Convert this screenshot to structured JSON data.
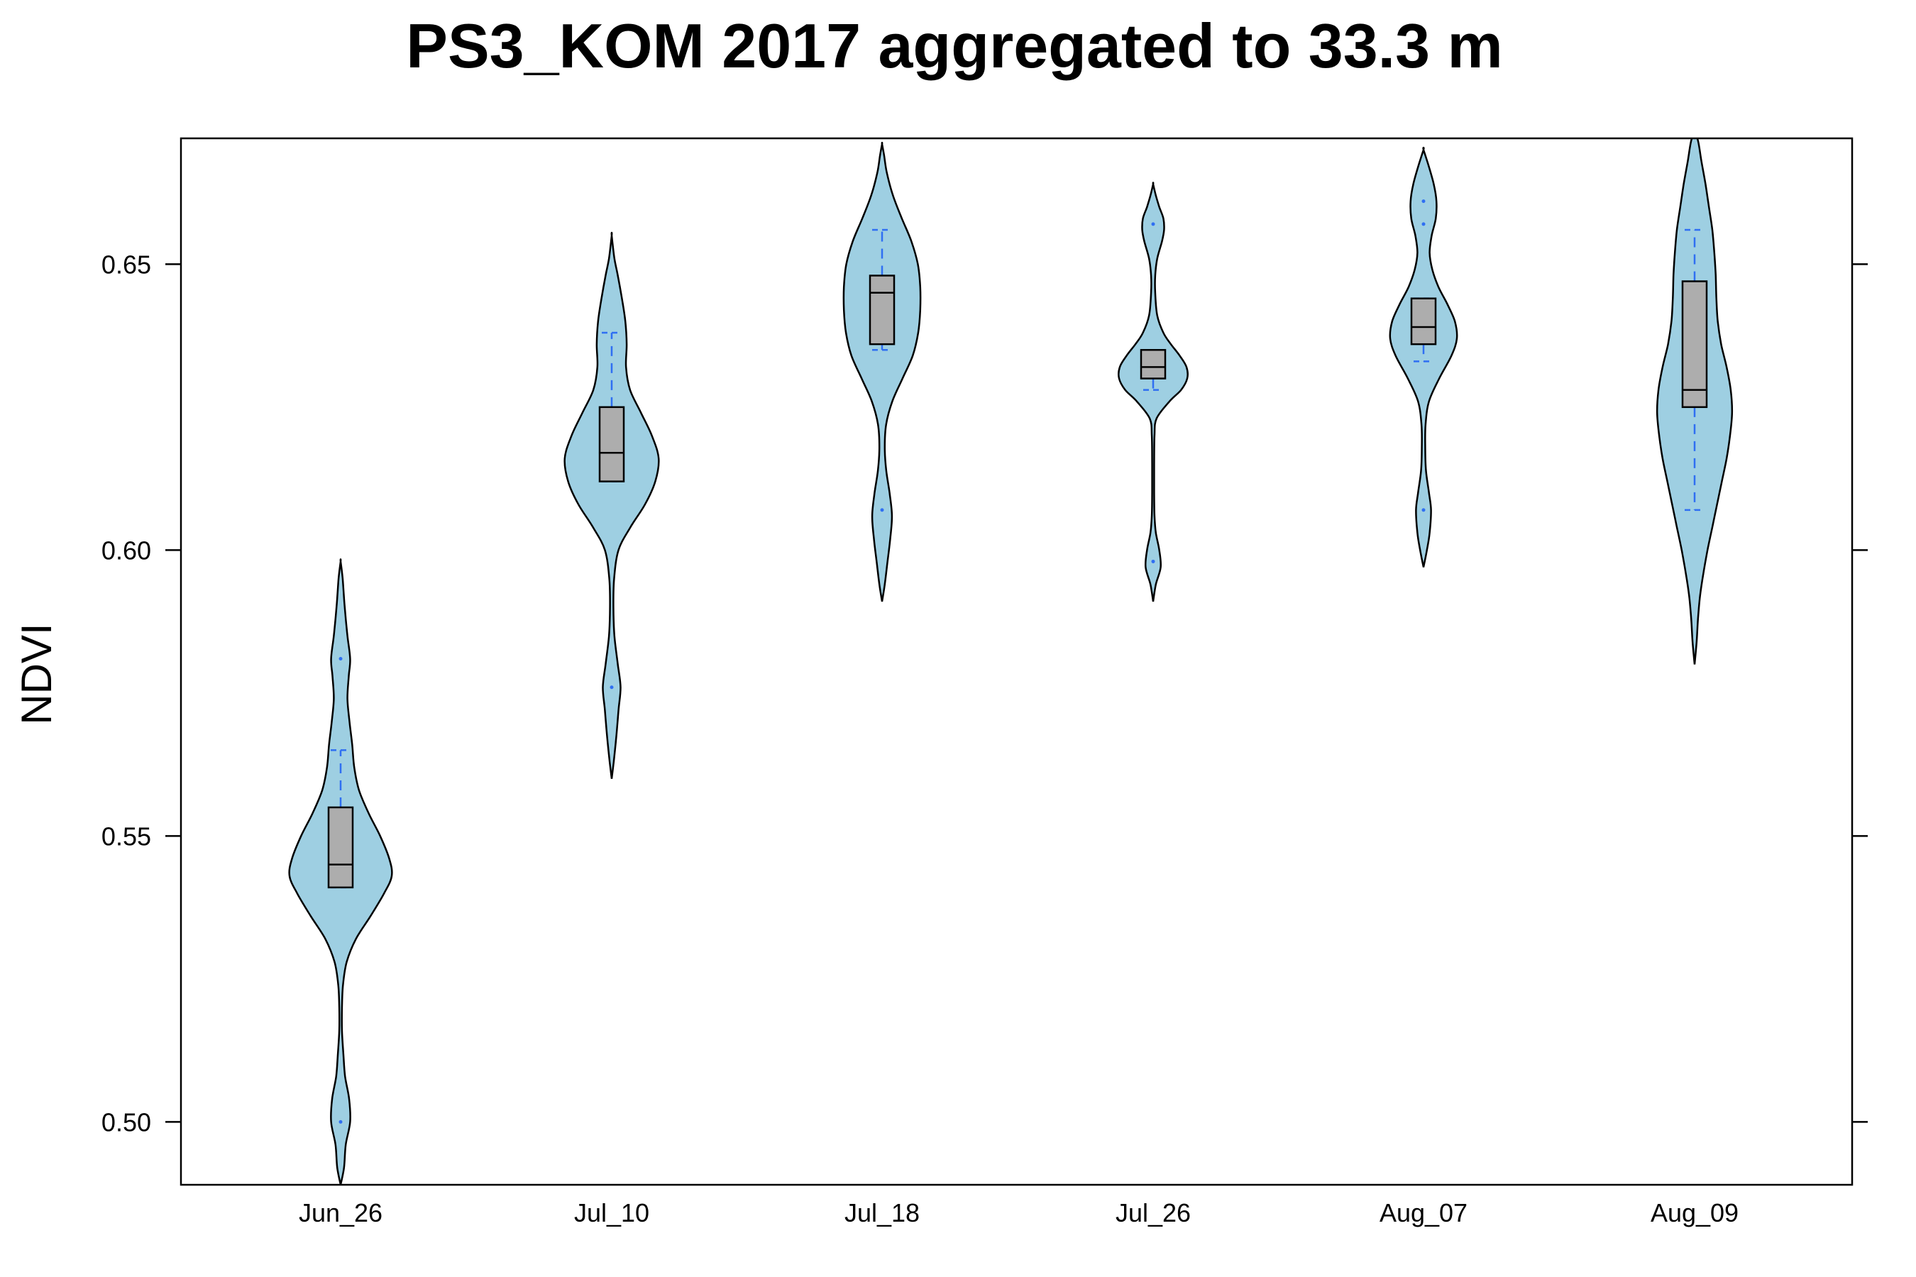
{
  "chart_data": {
    "type": "violin",
    "title": "PS3_KOM 2017 aggregated to 33.3 m",
    "xlabel": "",
    "ylabel": "NDVI",
    "ylim": [
      0.489,
      0.672
    ],
    "yticks": [
      0.5,
      0.55,
      0.6,
      0.65
    ],
    "ytick_labels": [
      "0.50",
      "0.55",
      "0.60",
      "0.65"
    ],
    "categories": [
      "Jun_26",
      "Jul_10",
      "Jul_18",
      "Jul_26",
      "Aug_07",
      "Aug_09"
    ],
    "grid": false,
    "colors": {
      "violin_fill": "#9ecfe2",
      "violin_stroke": "#000000",
      "box_fill": "#adadad",
      "whisker": "#2f6ff2"
    },
    "boxes": [
      {
        "category": "Jun_26",
        "q1": 0.541,
        "median": 0.545,
        "q3": 0.555,
        "whisker_low": 0.541,
        "whisker_high": 0.565
      },
      {
        "category": "Jul_10",
        "q1": 0.612,
        "median": 0.617,
        "q3": 0.625,
        "whisker_low": 0.612,
        "whisker_high": 0.638
      },
      {
        "category": "Jul_18",
        "q1": 0.636,
        "median": 0.645,
        "q3": 0.648,
        "whisker_low": 0.635,
        "whisker_high": 0.656
      },
      {
        "category": "Jul_26",
        "q1": 0.63,
        "median": 0.632,
        "q3": 0.635,
        "whisker_low": 0.628,
        "whisker_high": 0.635
      },
      {
        "category": "Aug_07",
        "q1": 0.636,
        "median": 0.639,
        "q3": 0.644,
        "whisker_low": 0.633,
        "whisker_high": 0.644
      },
      {
        "category": "Aug_09",
        "q1": 0.625,
        "median": 0.628,
        "q3": 0.647,
        "whisker_low": 0.607,
        "whisker_high": 0.656
      }
    ],
    "outliers": [
      {
        "category": "Jun_26",
        "values": [
          0.581,
          0.5
        ]
      },
      {
        "category": "Jul_10",
        "values": [
          0.576
        ]
      },
      {
        "category": "Jul_18",
        "values": [
          0.607
        ]
      },
      {
        "category": "Jul_26",
        "values": [
          0.657,
          0.598
        ]
      },
      {
        "category": "Aug_07",
        "values": [
          0.661,
          0.657,
          0.607
        ]
      },
      {
        "category": "Aug_09",
        "values": []
      }
    ],
    "violins": [
      {
        "category": "Jun_26",
        "profile": [
          [
            0.489,
            0.0
          ],
          [
            0.492,
            0.01
          ],
          [
            0.496,
            0.015
          ],
          [
            0.5,
            0.028
          ],
          [
            0.504,
            0.025
          ],
          [
            0.508,
            0.013
          ],
          [
            0.512,
            0.008
          ],
          [
            0.516,
            0.004
          ],
          [
            0.52,
            0.004
          ],
          [
            0.524,
            0.007
          ],
          [
            0.528,
            0.018
          ],
          [
            0.532,
            0.045
          ],
          [
            0.536,
            0.088
          ],
          [
            0.54,
            0.128
          ],
          [
            0.543,
            0.15
          ],
          [
            0.546,
            0.143
          ],
          [
            0.55,
            0.116
          ],
          [
            0.554,
            0.082
          ],
          [
            0.558,
            0.054
          ],
          [
            0.562,
            0.04
          ],
          [
            0.566,
            0.034
          ],
          [
            0.57,
            0.026
          ],
          [
            0.574,
            0.02
          ],
          [
            0.578,
            0.024
          ],
          [
            0.581,
            0.028
          ],
          [
            0.585,
            0.02
          ],
          [
            0.59,
            0.012
          ],
          [
            0.595,
            0.006
          ],
          [
            0.598,
            0.0
          ]
        ]
      },
      {
        "category": "Jul_10",
        "profile": [
          [
            0.56,
            0.0
          ],
          [
            0.563,
            0.006
          ],
          [
            0.567,
            0.013
          ],
          [
            0.572,
            0.02
          ],
          [
            0.576,
            0.026
          ],
          [
            0.58,
            0.018
          ],
          [
            0.585,
            0.008
          ],
          [
            0.59,
            0.005
          ],
          [
            0.595,
            0.007
          ],
          [
            0.6,
            0.02
          ],
          [
            0.604,
            0.055
          ],
          [
            0.608,
            0.098
          ],
          [
            0.612,
            0.128
          ],
          [
            0.616,
            0.138
          ],
          [
            0.62,
            0.118
          ],
          [
            0.624,
            0.086
          ],
          [
            0.628,
            0.054
          ],
          [
            0.632,
            0.042
          ],
          [
            0.636,
            0.044
          ],
          [
            0.64,
            0.04
          ],
          [
            0.644,
            0.03
          ],
          [
            0.648,
            0.018
          ],
          [
            0.651,
            0.008
          ],
          [
            0.655,
            0.0
          ]
        ]
      },
      {
        "category": "Jul_18",
        "profile": [
          [
            0.591,
            0.0
          ],
          [
            0.594,
            0.008
          ],
          [
            0.598,
            0.016
          ],
          [
            0.602,
            0.024
          ],
          [
            0.606,
            0.029
          ],
          [
            0.61,
            0.022
          ],
          [
            0.614,
            0.012
          ],
          [
            0.618,
            0.008
          ],
          [
            0.622,
            0.012
          ],
          [
            0.626,
            0.03
          ],
          [
            0.63,
            0.06
          ],
          [
            0.634,
            0.09
          ],
          [
            0.638,
            0.106
          ],
          [
            0.642,
            0.112
          ],
          [
            0.646,
            0.112
          ],
          [
            0.65,
            0.105
          ],
          [
            0.654,
            0.086
          ],
          [
            0.658,
            0.058
          ],
          [
            0.662,
            0.032
          ],
          [
            0.666,
            0.014
          ],
          [
            0.669,
            0.006
          ],
          [
            0.671,
            0.0
          ]
        ]
      },
      {
        "category": "Jul_26",
        "profile": [
          [
            0.591,
            0.0
          ],
          [
            0.594,
            0.008
          ],
          [
            0.597,
            0.022
          ],
          [
            0.6,
            0.018
          ],
          [
            0.603,
            0.008
          ],
          [
            0.606,
            0.004
          ],
          [
            0.61,
            0.003
          ],
          [
            0.615,
            0.003
          ],
          [
            0.62,
            0.004
          ],
          [
            0.623,
            0.01
          ],
          [
            0.626,
            0.048
          ],
          [
            0.628,
            0.082
          ],
          [
            0.63,
            0.1
          ],
          [
            0.632,
            0.098
          ],
          [
            0.634,
            0.078
          ],
          [
            0.636,
            0.052
          ],
          [
            0.638,
            0.03
          ],
          [
            0.641,
            0.012
          ],
          [
            0.645,
            0.006
          ],
          [
            0.648,
            0.006
          ],
          [
            0.651,
            0.012
          ],
          [
            0.654,
            0.026
          ],
          [
            0.656,
            0.032
          ],
          [
            0.658,
            0.03
          ],
          [
            0.66,
            0.018
          ],
          [
            0.662,
            0.008
          ],
          [
            0.664,
            0.0
          ]
        ]
      },
      {
        "category": "Aug_07",
        "profile": [
          [
            0.597,
            0.0
          ],
          [
            0.6,
            0.01
          ],
          [
            0.603,
            0.018
          ],
          [
            0.607,
            0.022
          ],
          [
            0.61,
            0.016
          ],
          [
            0.614,
            0.007
          ],
          [
            0.618,
            0.005
          ],
          [
            0.622,
            0.006
          ],
          [
            0.626,
            0.016
          ],
          [
            0.63,
            0.046
          ],
          [
            0.634,
            0.082
          ],
          [
            0.637,
            0.098
          ],
          [
            0.64,
            0.092
          ],
          [
            0.643,
            0.07
          ],
          [
            0.646,
            0.044
          ],
          [
            0.649,
            0.026
          ],
          [
            0.652,
            0.018
          ],
          [
            0.655,
            0.024
          ],
          [
            0.658,
            0.036
          ],
          [
            0.661,
            0.038
          ],
          [
            0.664,
            0.03
          ],
          [
            0.667,
            0.016
          ],
          [
            0.67,
            0.0
          ]
        ]
      },
      {
        "category": "Aug_09",
        "profile": [
          [
            0.58,
            0.0
          ],
          [
            0.584,
            0.006
          ],
          [
            0.588,
            0.01
          ],
          [
            0.592,
            0.016
          ],
          [
            0.596,
            0.026
          ],
          [
            0.6,
            0.038
          ],
          [
            0.604,
            0.052
          ],
          [
            0.608,
            0.066
          ],
          [
            0.612,
            0.08
          ],
          [
            0.616,
            0.094
          ],
          [
            0.62,
            0.104
          ],
          [
            0.624,
            0.11
          ],
          [
            0.628,
            0.106
          ],
          [
            0.632,
            0.094
          ],
          [
            0.636,
            0.078
          ],
          [
            0.64,
            0.068
          ],
          [
            0.644,
            0.064
          ],
          [
            0.648,
            0.062
          ],
          [
            0.652,
            0.058
          ],
          [
            0.656,
            0.052
          ],
          [
            0.66,
            0.042
          ],
          [
            0.664,
            0.032
          ],
          [
            0.668,
            0.02
          ],
          [
            0.672,
            0.008
          ]
        ]
      }
    ]
  }
}
